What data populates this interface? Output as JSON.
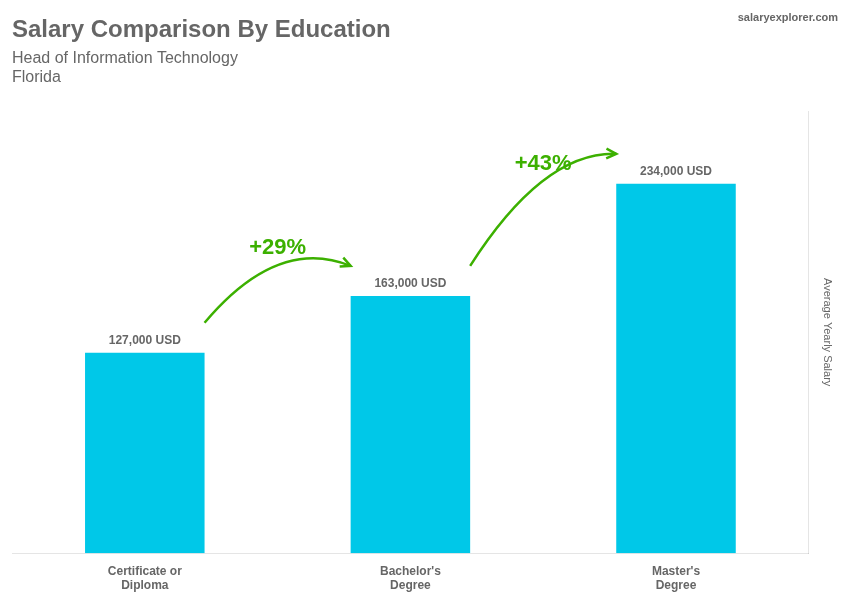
{
  "chart_data": {
    "type": "bar",
    "title": "Salary Comparison By Education",
    "subtitle": [
      "Head of Information Technology",
      "Florida"
    ],
    "watermark": "salaryexplorer.com",
    "y_label": "Average Yearly Salary",
    "categories": [
      "Certificate or\nDiploma",
      "Bachelor's\nDegree",
      "Master's\nDegree"
    ],
    "values": [
      127000,
      163000,
      234000
    ],
    "value_labels": [
      "127,000 USD",
      "163,000 USD",
      "234,000 USD"
    ],
    "data_labels": true,
    "color": "#00c8e8",
    "ylim": [
      0,
      280000
    ],
    "tick_labels": "x",
    "grid": false,
    "legend": "none",
    "annotations": [
      {
        "text": "+29%",
        "from": "Certificate or\nDiploma",
        "to": "Bachelor's\nDegree",
        "color": "#3cb000"
      },
      {
        "text": "+43%",
        "from": "Bachelor's\nDegree",
        "to": "Master's\nDegree",
        "color": "#3cb000"
      }
    ]
  }
}
